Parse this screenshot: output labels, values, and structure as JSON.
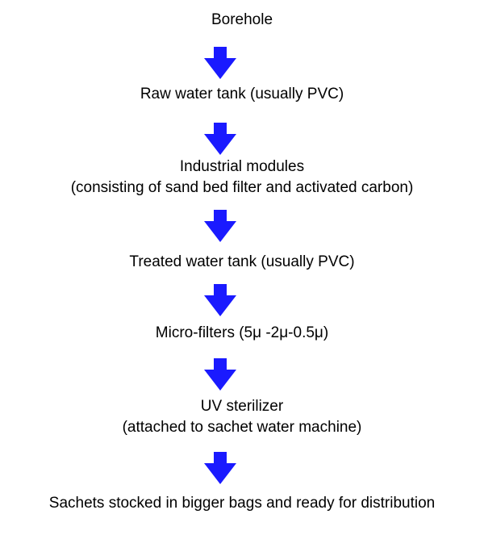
{
  "flow": {
    "steps": [
      {
        "lines": [
          "Borehole"
        ]
      },
      {
        "lines": [
          "Raw water tank (usually PVC)"
        ]
      },
      {
        "lines": [
          "Industrial modules",
          "(consisting of sand bed filter and activated carbon)"
        ]
      },
      {
        "lines": [
          "Treated water tank (usually PVC)"
        ]
      },
      {
        "lines": [
          "Micro-filters (5μ -2μ-0.5μ)"
        ]
      },
      {
        "lines": [
          "UV sterilizer",
          "(attached to sachet water machine)"
        ]
      },
      {
        "lines": [
          "Sachets stocked in bigger bags and ready for distribution"
        ]
      }
    ],
    "arrow_color": "#1a1aff",
    "text_color": "#000000"
  }
}
